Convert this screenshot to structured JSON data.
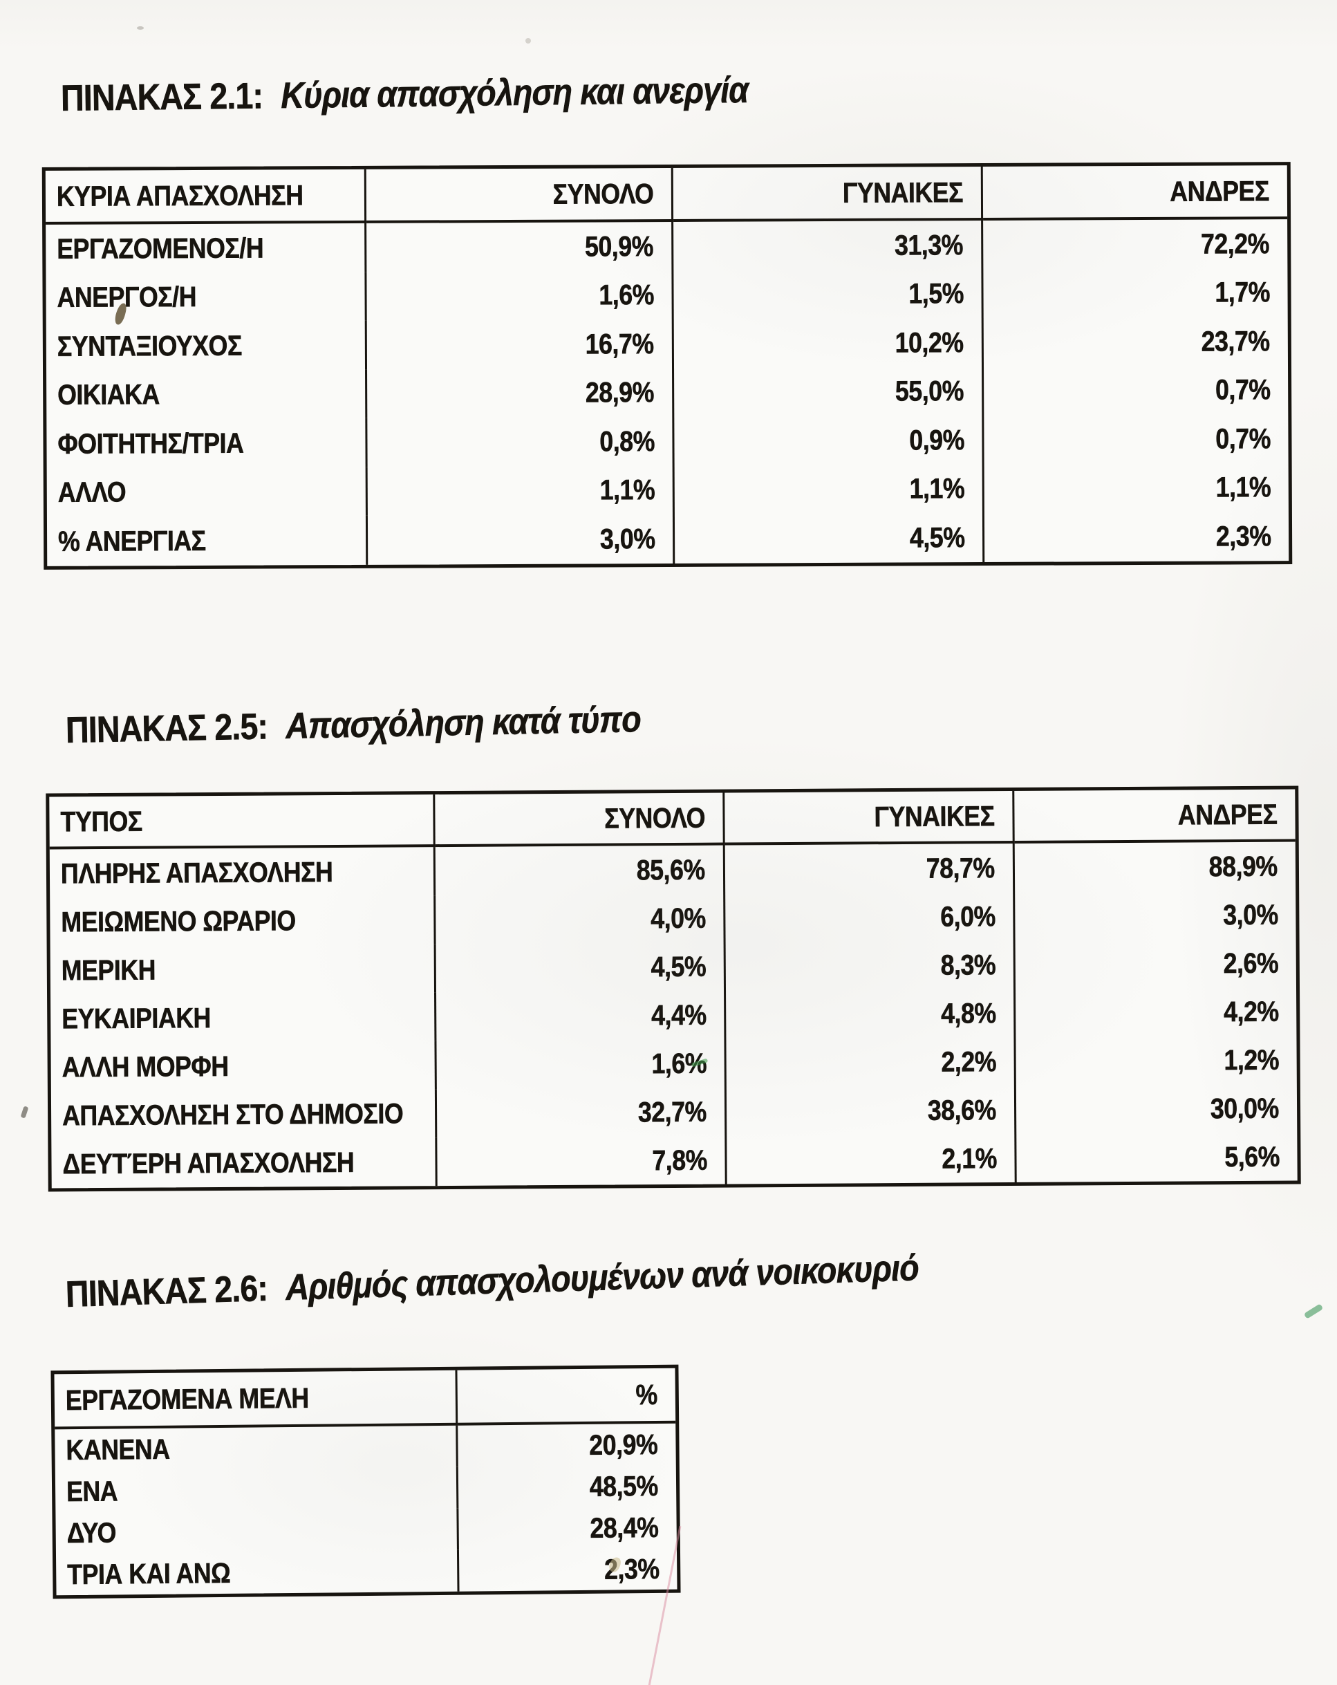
{
  "document": {
    "paper_color": "#f8f7f4",
    "ink_color": "#17140f",
    "tables": [
      {
        "number_label": "ΠΙΝΑΚΑΣ 2.1:",
        "title": "Κύρια απασχόληση και ανεργία",
        "headers": [
          "ΚΥΡΙΑ ΑΠΑΣΧΟΛΗΣΗ",
          "ΣΥΝΟΛΟ",
          "ΓΥΝΑΙΚΕΣ",
          "ΑΝΔΡΕΣ"
        ],
        "rows": [
          {
            "label": "ΕΡΓΑΖΟΜΕΝΟΣ/Η",
            "total": "50,9%",
            "women": "31,3%",
            "men": "72,2%"
          },
          {
            "label": "ΑΝΕΡΓΟΣ/Η",
            "total": "1,6%",
            "women": "1,5%",
            "men": "1,7%"
          },
          {
            "label": "ΣΥΝΤΑΞΙΟΥΧΟΣ",
            "total": "16,7%",
            "women": "10,2%",
            "men": "23,7%"
          },
          {
            "label": "ΟΙΚΙΑΚΑ",
            "total": "28,9%",
            "women": "55,0%",
            "men": "0,7%"
          },
          {
            "label": "ΦΟΙΤΗΤΗΣ/ΤΡΙΑ",
            "total": "0,8%",
            "women": "0,9%",
            "men": "0,7%"
          },
          {
            "label": "ΑΛΛΟ",
            "total": "1,1%",
            "women": "1,1%",
            "men": "1,1%"
          },
          {
            "label": "% ΑΝΕΡΓΙΑΣ",
            "total": "3,0%",
            "women": "4,5%",
            "men": "2,3%"
          }
        ]
      },
      {
        "number_label": "ΠΙΝΑΚΑΣ 2.5:",
        "title": "Απασχόληση κατά τύπο",
        "headers": [
          "ΤΥΠΟΣ",
          "ΣΥΝΟΛΟ",
          "ΓΥΝΑΙΚΕΣ",
          "ΑΝΔΡΕΣ"
        ],
        "rows": [
          {
            "label": "ΠΛΗΡΗΣ ΑΠΑΣΧΟΛΗΣΗ",
            "total": "85,6%",
            "women": "78,7%",
            "men": "88,9%"
          },
          {
            "label": "ΜΕΙΩΜΕΝΟ ΩΡΑΡΙΟ",
            "total": "4,0%",
            "women": "6,0%",
            "men": "3,0%"
          },
          {
            "label": "ΜΕΡΙΚΗ",
            "total": "4,5%",
            "women": "8,3%",
            "men": "2,6%"
          },
          {
            "label": "ΕΥΚΑΙΡΙΑΚΗ",
            "total": "4,4%",
            "women": "4,8%",
            "men": "4,2%"
          },
          {
            "label": "ΑΛΛΗ ΜΟΡΦΗ",
            "total": "1,6%",
            "women": "2,2%",
            "men": "1,2%"
          },
          {
            "label": "ΑΠΑΣΧΟΛΗΣΗ ΣΤΟ ΔΗΜΟΣΙΟ",
            "total": "32,7%",
            "women": "38,6%",
            "men": "30,0%"
          },
          {
            "label": "ΔΕΥΤΈΡΗ ΑΠΑΣΧΟΛΗΣΗ",
            "total": "7,8%",
            "women": "2,1%",
            "men": "5,6%"
          }
        ]
      },
      {
        "number_label": "ΠΙΝΑΚΑΣ 2.6:",
        "title": "Αριθμός απασχολουμένων ανά νοικοκυριό",
        "headers": [
          "ΕΡΓΑΖΟΜΕΝΑ ΜΕΛΗ",
          "%"
        ],
        "rows": [
          {
            "label": "ΚΑΝΕΝΑ",
            "total": "20,9%"
          },
          {
            "label": "ΕΝΑ",
            "total": "48,5%"
          },
          {
            "label": "ΔΥΟ",
            "total": "28,4%"
          },
          {
            "label": "ΤΡΙΑ ΚΑΙ ΑΝΩ",
            "total": "2,3%"
          }
        ]
      }
    ]
  }
}
